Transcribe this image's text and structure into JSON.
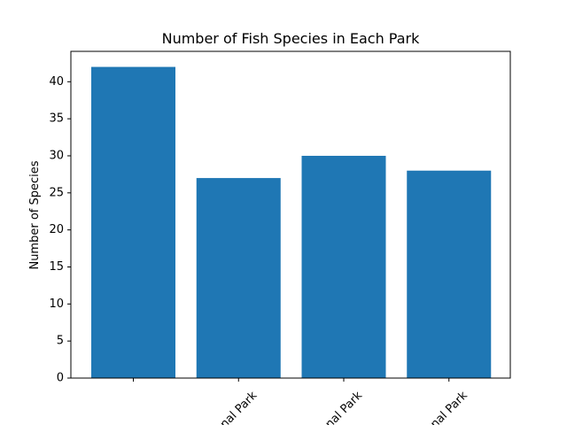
{
  "chart_data": {
    "type": "bar",
    "title": "Number of Fish Species in Each Park",
    "xlabel": "",
    "ylabel": "Number of Species",
    "categories": [
      "",
      "nal Park",
      "nal Park",
      "nal Park"
    ],
    "values": [
      42,
      27,
      30,
      28
    ],
    "ylim": [
      0,
      44.1
    ],
    "yticks": [
      0,
      5,
      10,
      15,
      20,
      25,
      30,
      35,
      40
    ],
    "bar_color": "#1f77b4",
    "grid": false,
    "legend": "none"
  }
}
